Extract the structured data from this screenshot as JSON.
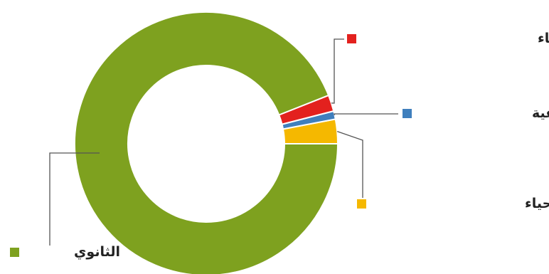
{
  "chart_data": {
    "type": "pie",
    "variant": "donut",
    "title": "",
    "categories": [
      "الثانوي",
      "بكالوريوس علم الأحياء",
      "الهندسة الزراعية",
      "البكالوريوس الأحياء"
    ],
    "values": [
      94,
      2,
      1,
      3
    ],
    "colors": [
      "#7ea11f",
      "#e3211e",
      "#3f7fbd",
      "#f5b800"
    ],
    "legend_placement": "labels-outside-with-leader-lines",
    "grid": false
  }
}
